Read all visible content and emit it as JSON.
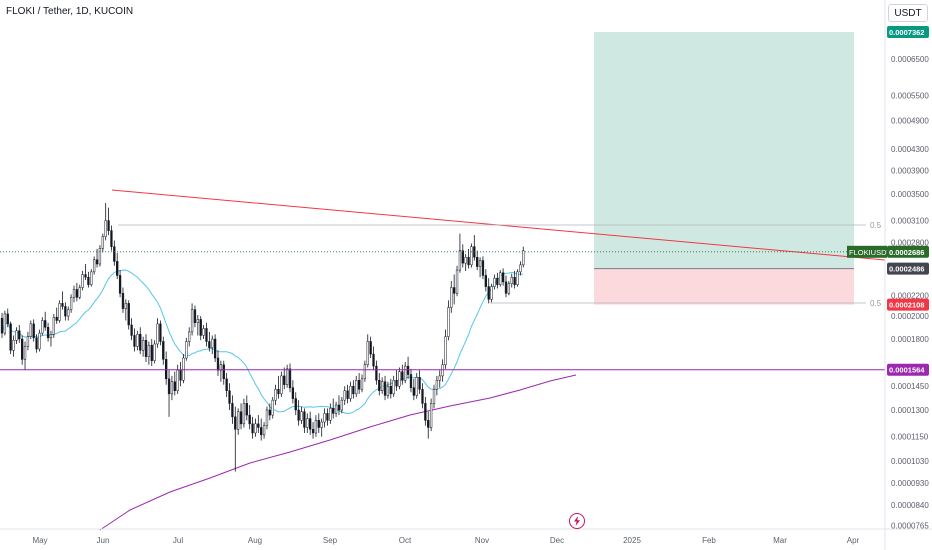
{
  "header": {
    "title": "FLOKI / Tether, 1D, KUCOIN",
    "currency": "USDT"
  },
  "colors": {
    "up": "#131722",
    "down": "#131722",
    "resistance_line": "#f23645",
    "support_line": "#9c27b0",
    "ma_fast": "#56c6e8",
    "ma_slow": "#9c27b0",
    "target_zone": "#cfe9e2",
    "stop_zone": "#fbd9dc",
    "price_badge": "#2a6b2a",
    "target_badge": "#089981",
    "stop_badge": "#f23645",
    "entry_badge": "#434651",
    "level_badge": "#9c27b0"
  },
  "chart_data": {
    "type": "candlestick",
    "symbol": "FLOKIUSDT",
    "exchange": "KUCOIN",
    "timeframe": "1D",
    "x_axis_labels": [
      "May",
      "Jun",
      "Jul",
      "Aug",
      "Sep",
      "Oct",
      "Nov",
      "Dec",
      "2025",
      "Feb",
      "Mar",
      "Apr"
    ],
    "y_axis_labels": [
      "0.0006500",
      "0.0005500",
      "0.0004900",
      "0.0004300",
      "0.0003900",
      "0.0003500",
      "0.0003100",
      "0.0002800",
      "0.0002200",
      "0.0002000",
      "0.0001800",
      "0.0001450",
      "0.0001300",
      "0.0001150",
      "0.0001030",
      "0.0000930",
      "0.0000840",
      "0.0000765"
    ],
    "y_scale": "log",
    "price_labels": [
      {
        "label": "",
        "value": "0.0007362",
        "kind": "target"
      },
      {
        "label": "FLOKIUSDT",
        "value": "0.0002686",
        "kind": "price"
      },
      {
        "label": "",
        "value": "0.0002486",
        "kind": "entry"
      },
      {
        "label": "",
        "value": "0.0002108",
        "kind": "stop"
      },
      {
        "label": "",
        "value": "0.0001564",
        "kind": "level"
      }
    ],
    "fib_labels": [
      "0.5",
      "0.5"
    ],
    "position": {
      "target": 0.0007362,
      "entry": 0.0002486,
      "stop": 0.0002108
    },
    "horizontal_level": 0.0001564,
    "last_price": 0.0002686,
    "candles": [
      [
        0.000198,
        0.000203,
        0.000181,
        0.000185
      ],
      [
        0.000185,
        0.000205,
        0.000183,
        0.000202
      ],
      [
        0.000202,
        0.000207,
        0.00019,
        0.000193
      ],
      [
        0.000193,
        0.000195,
        0.000168,
        0.000171
      ],
      [
        0.000171,
        0.000183,
        0.000166,
        0.000179
      ],
      [
        0.000179,
        0.00019,
        0.000176,
        0.000187
      ],
      [
        0.000187,
        0.000192,
        0.000177,
        0.00018
      ],
      [
        0.00018,
        0.000183,
        0.00016,
        0.000164
      ],
      [
        0.000164,
        0.000178,
        0.000156,
        0.000174
      ],
      [
        0.000174,
        0.000186,
        0.000171,
        0.000182
      ],
      [
        0.000182,
        0.000196,
        0.00018,
        0.000193
      ],
      [
        0.000193,
        0.000197,
        0.000178,
        0.000181
      ],
      [
        0.000181,
        0.000184,
        0.000169,
        0.000172
      ],
      [
        0.000172,
        0.000188,
        0.00017,
        0.000185
      ],
      [
        0.000185,
        0.000199,
        0.000183,
        0.000196
      ],
      [
        0.000196,
        0.000204,
        0.000187,
        0.00019
      ],
      [
        0.00019,
        0.000194,
        0.000178,
        0.000181
      ],
      [
        0.000181,
        0.000187,
        0.000174,
        0.000184
      ],
      [
        0.000184,
        0.000202,
        0.000181,
        0.000199
      ],
      [
        0.000199,
        0.000208,
        0.000193,
        0.000196
      ],
      [
        0.000196,
        0.000215,
        0.000194,
        0.000212
      ],
      [
        0.000212,
        0.000224,
        0.000206,
        0.000209
      ],
      [
        0.000209,
        0.000213,
        0.000196,
        0.0002
      ],
      [
        0.0002,
        0.000209,
        0.000196,
        0.000206
      ],
      [
        0.000206,
        0.000221,
        0.000203,
        0.000218
      ],
      [
        0.000218,
        0.00023,
        0.000213,
        0.000226
      ],
      [
        0.000226,
        0.000233,
        0.000214,
        0.000218
      ],
      [
        0.000218,
        0.000231,
        0.000216,
        0.000228
      ],
      [
        0.000228,
        0.000246,
        0.000225,
        0.000242
      ],
      [
        0.000242,
        0.000254,
        0.000236,
        0.000239
      ],
      [
        0.000239,
        0.000245,
        0.000228,
        0.000231
      ],
      [
        0.000231,
        0.000248,
        0.000229,
        0.000245
      ],
      [
        0.000245,
        0.000263,
        0.000242,
        0.000259
      ],
      [
        0.000259,
        0.000272,
        0.00025,
        0.000254
      ],
      [
        0.000254,
        0.000277,
        0.000251,
        0.000273
      ],
      [
        0.000273,
        0.000292,
        0.000268,
        0.000288
      ],
      [
        0.000288,
        0.000336,
        0.000283,
        0.00031
      ],
      [
        0.00031,
        0.000329,
        0.00029,
        0.000296
      ],
      [
        0.000296,
        0.000303,
        0.00027,
        0.000275
      ],
      [
        0.000275,
        0.000283,
        0.000252,
        0.000257
      ],
      [
        0.000257,
        0.000267,
        0.000237,
        0.000241
      ],
      [
        0.000241,
        0.000247,
        0.000218,
        0.000222
      ],
      [
        0.000222,
        0.000228,
        0.000203,
        0.000207
      ],
      [
        0.000207,
        0.000216,
        0.000196,
        0.000212
      ],
      [
        0.000212,
        0.000215,
        0.000188,
        0.000192
      ],
      [
        0.000192,
        0.000198,
        0.000179,
        0.000183
      ],
      [
        0.000183,
        0.000189,
        0.00017,
        0.000174
      ],
      [
        0.000174,
        0.000187,
        0.000171,
        0.000184
      ],
      [
        0.000184,
        0.00019,
        0.000168,
        0.000171
      ],
      [
        0.000171,
        0.000182,
        0.000166,
        0.000179
      ],
      [
        0.000179,
        0.000184,
        0.000162,
        0.000166
      ],
      [
        0.000166,
        0.000178,
        0.00016,
        0.000175
      ],
      [
        0.000175,
        0.00018,
        0.000159,
        0.000163
      ],
      [
        0.000163,
        0.000179,
        0.000161,
        0.000176
      ],
      [
        0.000176,
        0.000198,
        0.000173,
        0.000193
      ],
      [
        0.000193,
        0.000196,
        0.000175,
        0.000178
      ],
      [
        0.000178,
        0.000182,
        0.00016,
        0.000164
      ],
      [
        0.000164,
        0.00017,
        0.000146,
        0.00015
      ],
      [
        0.00015,
        0.000156,
        0.000126,
        0.00014
      ],
      [
        0.00014,
        0.000152,
        0.000136,
        0.000148
      ],
      [
        0.000148,
        0.000155,
        0.000139,
        0.000142
      ],
      [
        0.000142,
        0.00016,
        0.00014,
        0.000156
      ],
      [
        0.000156,
        0.000162,
        0.000145,
        0.000149
      ],
      [
        0.000149,
        0.000168,
        0.000147,
        0.000165
      ],
      [
        0.000165,
        0.000181,
        0.000163,
        0.000178
      ],
      [
        0.000178,
        0.00019,
        0.000174,
        0.000186
      ],
      [
        0.000186,
        0.000212,
        0.000183,
        0.000206
      ],
      [
        0.000206,
        0.00021,
        0.00019,
        0.000194
      ],
      [
        0.000194,
        0.000201,
        0.000183,
        0.000197
      ],
      [
        0.000197,
        0.0002,
        0.000179,
        0.000183
      ],
      [
        0.000183,
        0.000192,
        0.00018,
        0.000189
      ],
      [
        0.000189,
        0.000194,
        0.000174,
        0.000178
      ],
      [
        0.000178,
        0.000186,
        0.00017,
        0.000173
      ],
      [
        0.000173,
        0.000183,
        0.000168,
        0.00018
      ],
      [
        0.00018,
        0.000184,
        0.000162,
        0.000165
      ],
      [
        0.000165,
        0.000171,
        0.000152,
        0.000156
      ],
      [
        0.000156,
        0.000163,
        0.000148,
        0.00016
      ],
      [
        0.00016,
        0.000163,
        0.000146,
        0.00015
      ],
      [
        0.00015,
        0.000154,
        0.000138,
        0.000142
      ],
      [
        0.000142,
        0.000147,
        0.00013,
        0.000134
      ],
      [
        0.000134,
        0.000139,
        0.000122,
        0.000126
      ],
      [
        0.000126,
        0.000132,
        9.8e-05,
        0.000119
      ],
      [
        0.000119,
        0.000131,
        0.000116,
        0.000129
      ],
      [
        0.000129,
        0.000134,
        0.000119,
        0.000122
      ],
      [
        0.000122,
        0.000137,
        0.00012,
        0.000134
      ],
      [
        0.000134,
        0.000139,
        0.000124,
        0.000127
      ],
      [
        0.000127,
        0.000133,
        0.000119,
        0.000122
      ],
      [
        0.000122,
        0.000126,
        0.000114,
        0.000117
      ],
      [
        0.000117,
        0.000125,
        0.000115,
        0.000122
      ],
      [
        0.000122,
        0.000127,
        0.000117,
        0.00012
      ],
      [
        0.00012,
        0.000125,
        0.000113,
        0.000116
      ],
      [
        0.000116,
        0.000123,
        0.000114,
        0.000121
      ],
      [
        0.000121,
        0.000132,
        0.000119,
        0.00013
      ],
      [
        0.00013,
        0.000134,
        0.000124,
        0.000127
      ],
      [
        0.000127,
        0.000138,
        0.000125,
        0.000136
      ],
      [
        0.000136,
        0.000146,
        0.000133,
        0.000143
      ],
      [
        0.000143,
        0.000152,
        0.000137,
        0.00014
      ],
      [
        0.00014,
        0.000155,
        0.000138,
        0.000152
      ],
      [
        0.000152,
        0.000158,
        0.000143,
        0.000146
      ],
      [
        0.000146,
        0.00016,
        0.000144,
        0.000157
      ],
      [
        0.000157,
        0.000161,
        0.000141,
        0.000144
      ],
      [
        0.000144,
        0.000149,
        0.000134,
        0.000137
      ],
      [
        0.000137,
        0.000141,
        0.000127,
        0.00013
      ],
      [
        0.00013,
        0.000136,
        0.000121,
        0.000124
      ],
      [
        0.000124,
        0.000132,
        0.000122,
        0.000129
      ],
      [
        0.000129,
        0.000131,
        0.000117,
        0.00012
      ],
      [
        0.00012,
        0.000128,
        0.000117,
        0.000125
      ],
      [
        0.000125,
        0.000129,
        0.000116,
        0.000119
      ],
      [
        0.000119,
        0.000123,
        0.000114,
        0.000117
      ],
      [
        0.000117,
        0.000127,
        0.000115,
        0.000124
      ],
      [
        0.000124,
        0.000128,
        0.000117,
        0.00012
      ],
      [
        0.00012,
        0.000125,
        0.000115,
        0.000123
      ],
      [
        0.000123,
        0.000131,
        0.00012,
        0.000128
      ],
      [
        0.000128,
        0.000131,
        0.000121,
        0.000124
      ],
      [
        0.000124,
        0.000134,
        0.000122,
        0.000131
      ],
      [
        0.000131,
        0.000137,
        0.000125,
        0.000128
      ],
      [
        0.000128,
        0.000135,
        0.000126,
        0.000133
      ],
      [
        0.000133,
        0.000139,
        0.000127,
        0.00013
      ],
      [
        0.00013,
        0.000138,
        0.000128,
        0.000136
      ],
      [
        0.000136,
        0.000145,
        0.000133,
        0.000142
      ],
      [
        0.000142,
        0.000146,
        0.000134,
        0.000137
      ],
      [
        0.000137,
        0.000148,
        0.000135,
        0.000145
      ],
      [
        0.000145,
        0.000149,
        0.000137,
        0.00014
      ],
      [
        0.00014,
        0.000152,
        0.000138,
        0.000149
      ],
      [
        0.000149,
        0.000154,
        0.00014,
        0.000143
      ],
      [
        0.000143,
        0.000153,
        0.000141,
        0.00015
      ],
      [
        0.00015,
        0.000163,
        0.000148,
        0.00016
      ],
      [
        0.00016,
        0.000184,
        0.000158,
        0.000178
      ],
      [
        0.000178,
        0.000182,
        0.000165,
        0.000168
      ],
      [
        0.000168,
        0.000174,
        0.000156,
        0.000159
      ],
      [
        0.000159,
        0.000163,
        0.000146,
        0.000149
      ],
      [
        0.000149,
        0.000154,
        0.000139,
        0.000142
      ],
      [
        0.000142,
        0.000151,
        0.00014,
        0.000148
      ],
      [
        0.000148,
        0.000152,
        0.000136,
        0.000139
      ],
      [
        0.000139,
        0.000148,
        0.000137,
        0.000145
      ],
      [
        0.000145,
        0.00015,
        0.000137,
        0.00014
      ],
      [
        0.00014,
        0.000152,
        0.000138,
        0.000149
      ],
      [
        0.000149,
        0.000156,
        0.000142,
        0.000145
      ],
      [
        0.000145,
        0.000158,
        0.000143,
        0.000155
      ],
      [
        0.000155,
        0.00016,
        0.000146,
        0.000149
      ],
      [
        0.000149,
        0.000162,
        0.000147,
        0.000159
      ],
      [
        0.000159,
        0.000166,
        0.00015,
        0.000153
      ],
      [
        0.000153,
        0.000157,
        0.000141,
        0.000144
      ],
      [
        0.000144,
        0.00015,
        0.000136,
        0.000139
      ],
      [
        0.000139,
        0.000154,
        0.000137,
        0.000151
      ],
      [
        0.000151,
        0.000156,
        0.00014,
        0.000143
      ],
      [
        0.000143,
        0.000147,
        0.000131,
        0.000134
      ],
      [
        0.000134,
        0.000138,
        0.000121,
        0.000124
      ],
      [
        0.000124,
        0.000129,
        0.000114,
        0.00012
      ],
      [
        0.00012,
        0.000137,
        0.000118,
        0.000134
      ],
      [
        0.000134,
        0.000146,
        0.000131,
        0.000143
      ],
      [
        0.000143,
        0.000152,
        0.000139,
        0.000149
      ],
      [
        0.000149,
        0.000156,
        0.000144,
        0.000152
      ],
      [
        0.000152,
        0.000164,
        0.000148,
        0.00016
      ],
      [
        0.00016,
        0.000188,
        0.000157,
        0.000182
      ],
      [
        0.000182,
        0.000215,
        0.000179,
        0.000208
      ],
      [
        0.000208,
        0.000235,
        0.000203,
        0.000228
      ],
      [
        0.000228,
        0.000242,
        0.000211,
        0.000222
      ],
      [
        0.000222,
        0.000252,
        0.000219,
        0.000247
      ],
      [
        0.000247,
        0.000292,
        0.000244,
        0.00027
      ],
      [
        0.00027,
        0.000278,
        0.00025,
        0.000255
      ],
      [
        0.000255,
        0.000266,
        0.000246,
        0.000262
      ],
      [
        0.000262,
        0.000272,
        0.000249,
        0.000253
      ],
      [
        0.000253,
        0.000279,
        0.00025,
        0.000275
      ],
      [
        0.000275,
        0.00029,
        0.000258,
        0.000262
      ],
      [
        0.000262,
        0.00027,
        0.000247,
        0.000251
      ],
      [
        0.000251,
        0.000262,
        0.000239,
        0.000258
      ],
      [
        0.000258,
        0.000263,
        0.000237,
        0.000241
      ],
      [
        0.000241,
        0.000248,
        0.000224,
        0.000229
      ],
      [
        0.000229,
        0.000238,
        0.000212,
        0.000216
      ],
      [
        0.000216,
        0.000232,
        0.000213,
        0.000229
      ],
      [
        0.000229,
        0.000242,
        0.000226,
        0.000238
      ],
      [
        0.000238,
        0.000244,
        0.000227,
        0.000231
      ],
      [
        0.000231,
        0.000247,
        0.000229,
        0.000244
      ],
      [
        0.000244,
        0.000249,
        0.00023,
        0.000234
      ],
      [
        0.000234,
        0.000241,
        0.000218,
        0.000222
      ],
      [
        0.000222,
        0.000235,
        0.00022,
        0.000232
      ],
      [
        0.000232,
        0.000243,
        0.000228,
        0.000239
      ],
      [
        0.000239,
        0.000246,
        0.000227,
        0.000231
      ],
      [
        0.000231,
        0.000248,
        0.000229,
        0.000245
      ],
      [
        0.000245,
        0.000257,
        0.000241,
        0.000253
      ],
      [
        0.000253,
        0.000275,
        0.00025,
        0.00027
      ]
    ]
  }
}
